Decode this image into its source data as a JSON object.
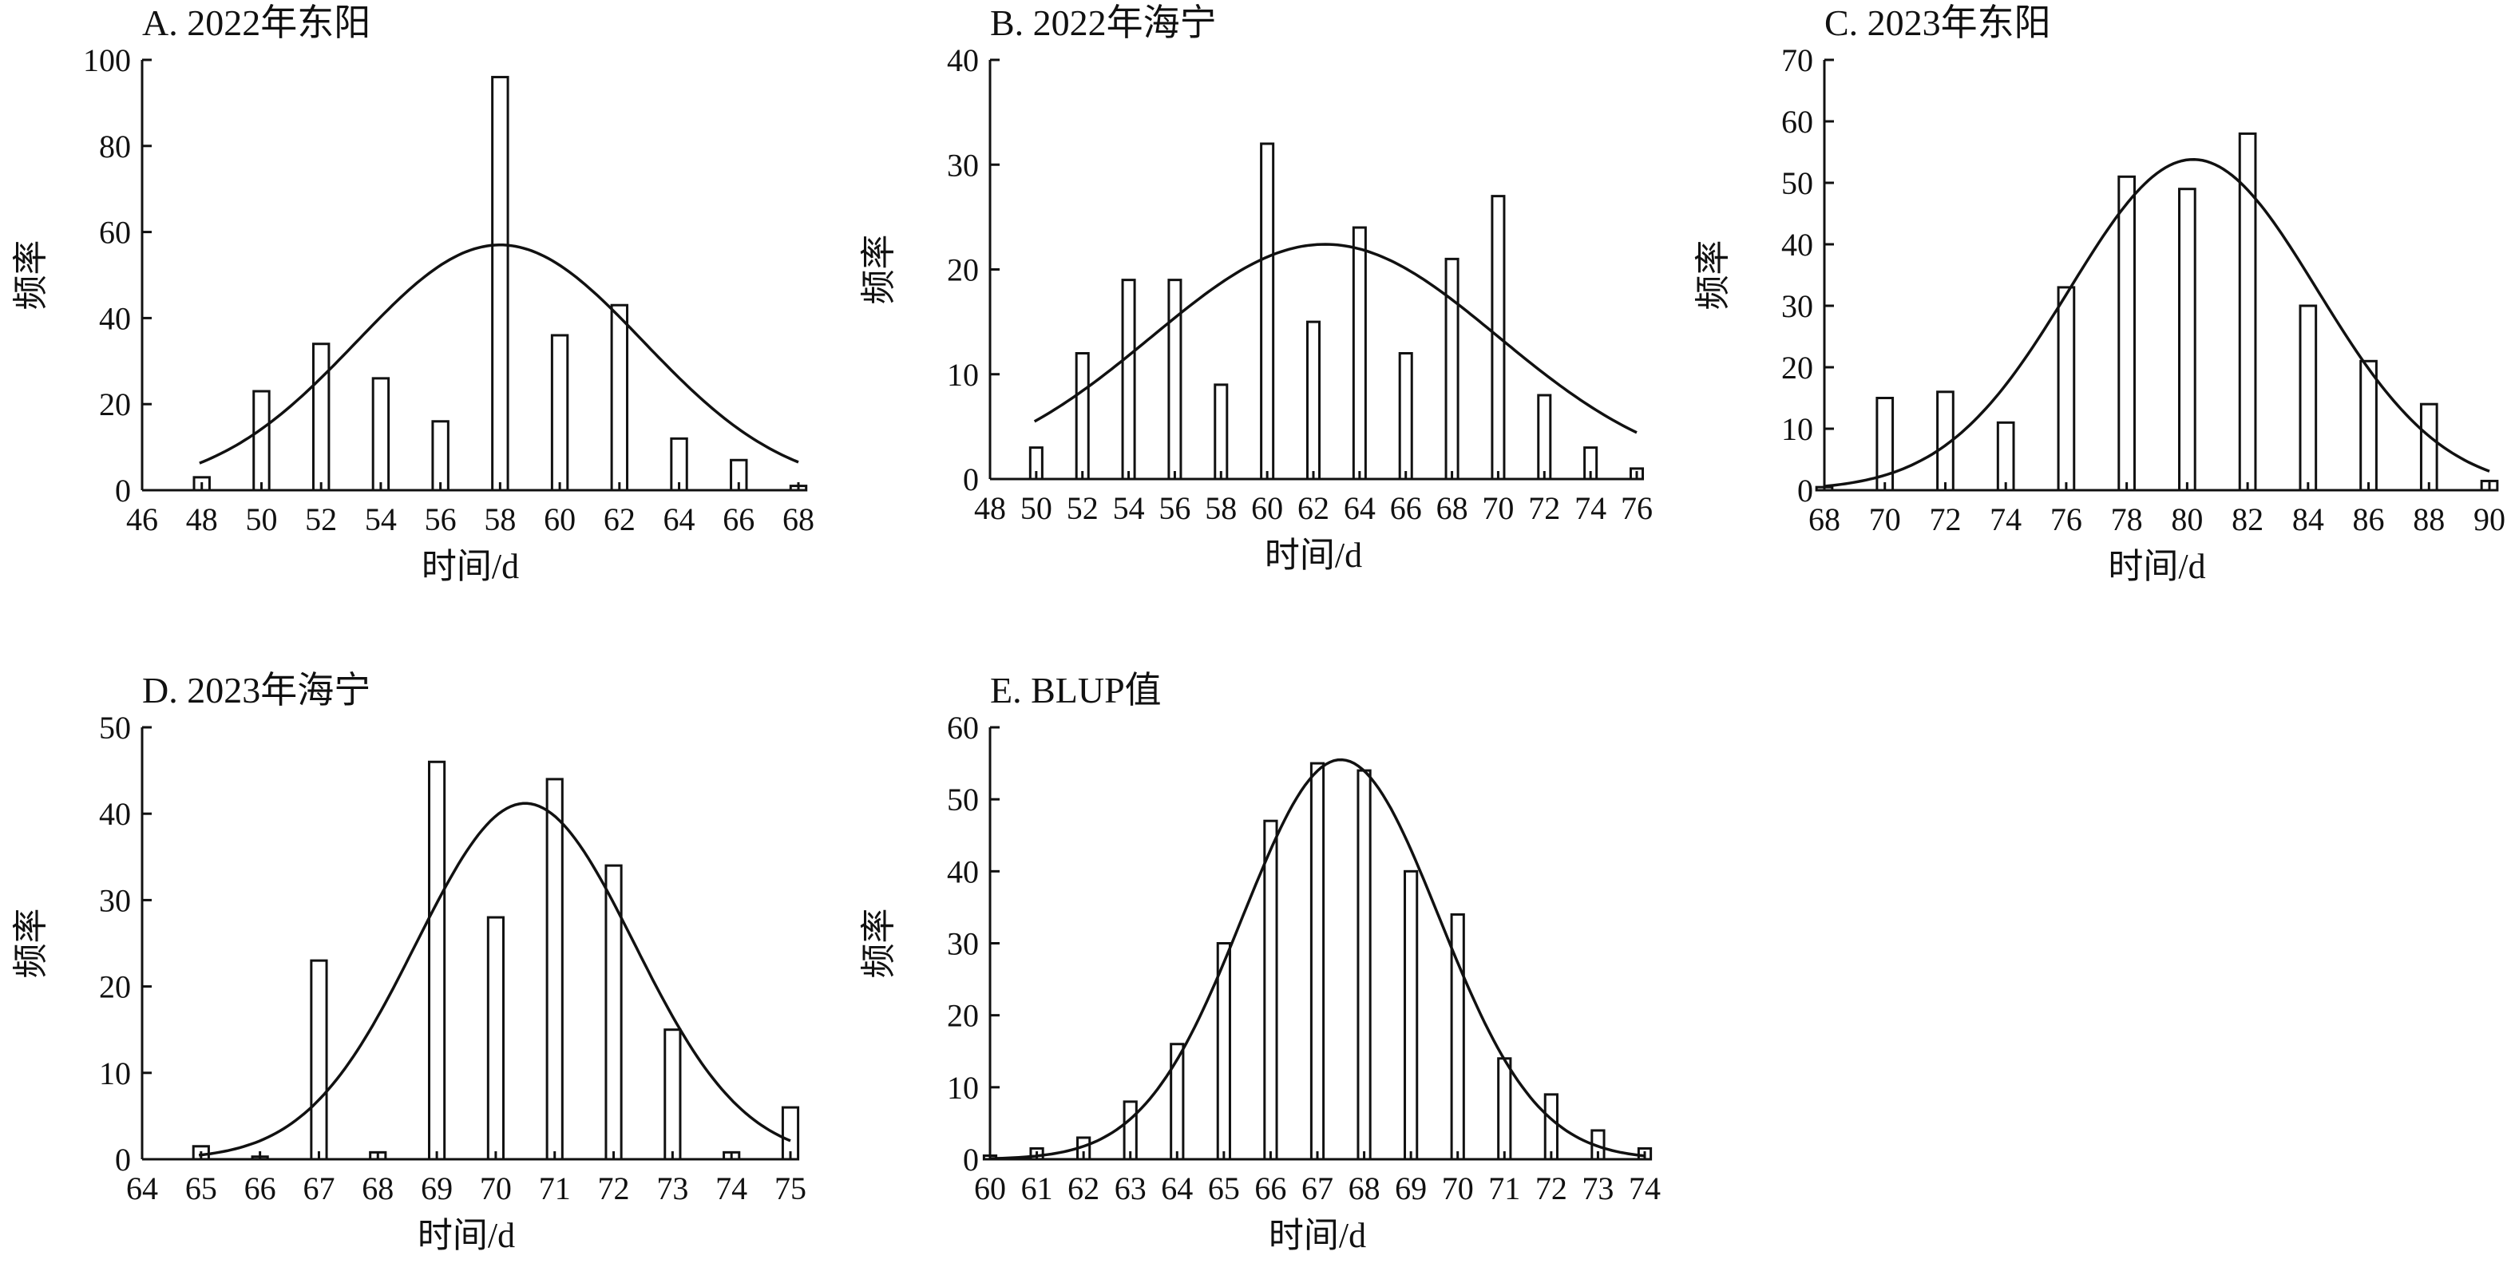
{
  "chart_data": [
    {
      "type": "bar",
      "title": "A. 2022年东阳",
      "xlabel": "时间/d",
      "ylabel": "频率",
      "xlim": [
        46,
        68
      ],
      "ylim": [
        0,
        100
      ],
      "xticks": [
        46,
        48,
        50,
        52,
        54,
        56,
        58,
        60,
        62,
        64,
        66,
        68
      ],
      "yticks": [
        0,
        20,
        40,
        60,
        80,
        100
      ],
      "x": [
        48,
        50,
        52,
        54,
        56,
        58,
        60,
        62,
        64,
        66,
        68
      ],
      "values": [
        3,
        23,
        34,
        26,
        16,
        96,
        36,
        43,
        12,
        7,
        1
      ],
      "fit_curve": {
        "type": "normal",
        "mean": 58,
        "peak": 57,
        "sd": 4.8
      },
      "grid": false
    },
    {
      "type": "bar",
      "title": "B. 2022年海宁",
      "xlabel": "时间/d",
      "ylabel": "频率",
      "xlim": [
        48,
        76
      ],
      "ylim": [
        0,
        40
      ],
      "xticks": [
        48,
        50,
        52,
        54,
        56,
        58,
        60,
        62,
        64,
        66,
        68,
        70,
        72,
        74,
        76
      ],
      "yticks": [
        0,
        10,
        20,
        30,
        40
      ],
      "x": [
        50,
        52,
        54,
        56,
        58,
        60,
        62,
        64,
        66,
        68,
        70,
        72,
        74,
        76
      ],
      "values": [
        3,
        12,
        19,
        19,
        9,
        32,
        15,
        24,
        12,
        21,
        27,
        8,
        3,
        1
      ],
      "fit_curve": {
        "type": "normal",
        "mean": 62.5,
        "peak": 22.4,
        "sd": 7.5
      },
      "grid": false
    },
    {
      "type": "bar",
      "title": "C. 2023年东阳",
      "xlabel": "时间/d",
      "ylabel": "频率",
      "xlim": [
        68,
        90
      ],
      "ylim": [
        0,
        70
      ],
      "xticks": [
        68,
        70,
        72,
        74,
        76,
        78,
        80,
        82,
        84,
        86,
        88,
        90
      ],
      "yticks": [
        0,
        10,
        20,
        30,
        40,
        50,
        60,
        70
      ],
      "x": [
        68,
        70,
        72,
        74,
        76,
        78,
        80,
        82,
        84,
        86,
        88,
        90
      ],
      "values": [
        0.5,
        15,
        16,
        11,
        33,
        51,
        49,
        58,
        30,
        21,
        14,
        1.5
      ],
      "fit_curve": {
        "type": "normal",
        "mean": 80.2,
        "peak": 53.8,
        "sd": 4.1
      },
      "grid": false
    },
    {
      "type": "bar",
      "title": "D. 2023年海宁",
      "xlabel": "时间/d",
      "ylabel": "频率",
      "xlim": [
        64,
        75
      ],
      "ylim": [
        0,
        50
      ],
      "xticks": [
        64,
        65,
        66,
        67,
        68,
        69,
        70,
        71,
        72,
        73,
        74,
        75
      ],
      "yticks": [
        0,
        10,
        20,
        30,
        40,
        50
      ],
      "x": [
        65,
        66,
        67,
        68,
        69,
        70,
        71,
        72,
        73,
        74,
        75
      ],
      "values": [
        1.5,
        0.3,
        23,
        0.8,
        46,
        28,
        44,
        34,
        15,
        0.8,
        6
      ],
      "fit_curve": {
        "type": "normal",
        "mean": 70.5,
        "peak": 41.2,
        "sd": 1.85
      },
      "grid": false
    },
    {
      "type": "bar",
      "title": "E. BLUP值",
      "xlabel": "时间/d",
      "ylabel": "频率",
      "xlim": [
        60,
        74
      ],
      "ylim": [
        0,
        60
      ],
      "xticks": [
        60,
        61,
        62,
        63,
        64,
        65,
        66,
        67,
        68,
        69,
        70,
        71,
        72,
        73,
        74
      ],
      "yticks": [
        0,
        10,
        20,
        30,
        40,
        50,
        60
      ],
      "x": [
        60,
        61,
        62,
        63,
        64,
        65,
        66,
        67,
        68,
        69,
        70,
        71,
        72,
        73,
        74
      ],
      "values": [
        0.5,
        1.5,
        3,
        8,
        16,
        30,
        47,
        55,
        54,
        40,
        34,
        14,
        9,
        4,
        1.5
      ],
      "fit_curve": {
        "type": "normal",
        "mean": 67.5,
        "peak": 55.5,
        "sd": 2.1
      },
      "grid": false
    }
  ]
}
